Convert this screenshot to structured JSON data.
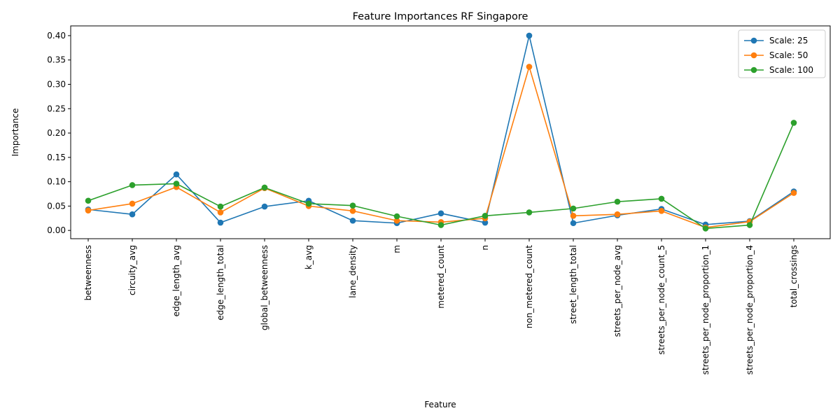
{
  "chart_data": {
    "type": "line",
    "title": "Feature Importances RF Singapore",
    "xlabel": "Feature",
    "ylabel": "Importance",
    "ylim": [
      -0.017,
      0.42
    ],
    "yticks": [
      0.0,
      0.05,
      0.1,
      0.15,
      0.2,
      0.25,
      0.3,
      0.35,
      0.4
    ],
    "ytick_labels": [
      "0.00",
      "0.05",
      "0.10",
      "0.15",
      "0.20",
      "0.25",
      "0.30",
      "0.35",
      "0.40"
    ],
    "categories": [
      "betweenness",
      "circuity_avg",
      "edge_length_avg",
      "edge_length_total",
      "global_betweenness",
      "k_avg",
      "lane_density",
      "m",
      "metered_count",
      "n",
      "non_metered_count",
      "street_length_total",
      "streets_per_node_avg",
      "streets_per_node_count_5",
      "streets_per_node_proportion_1",
      "streets_per_node_proportion_4",
      "total_crossings"
    ],
    "series": [
      {
        "name": "Scale: 25",
        "color": "#1f77b4",
        "values": [
          0.043,
          0.033,
          0.115,
          0.016,
          0.049,
          0.061,
          0.02,
          0.015,
          0.035,
          0.016,
          0.4,
          0.015,
          0.031,
          0.044,
          0.012,
          0.019,
          0.08
        ]
      },
      {
        "name": "Scale: 50",
        "color": "#ff7f0e",
        "values": [
          0.041,
          0.055,
          0.089,
          0.037,
          0.087,
          0.05,
          0.04,
          0.02,
          0.017,
          0.025,
          0.336,
          0.03,
          0.033,
          0.04,
          0.006,
          0.018,
          0.077
        ]
      },
      {
        "name": "Scale: 100",
        "color": "#2ca02c",
        "values": [
          0.061,
          0.093,
          0.096,
          0.049,
          0.088,
          0.055,
          0.051,
          0.029,
          0.011,
          0.03,
          0.037,
          0.045,
          0.059,
          0.065,
          0.004,
          0.011,
          0.221
        ]
      }
    ],
    "grid": false,
    "legend_position": "top-right"
  }
}
